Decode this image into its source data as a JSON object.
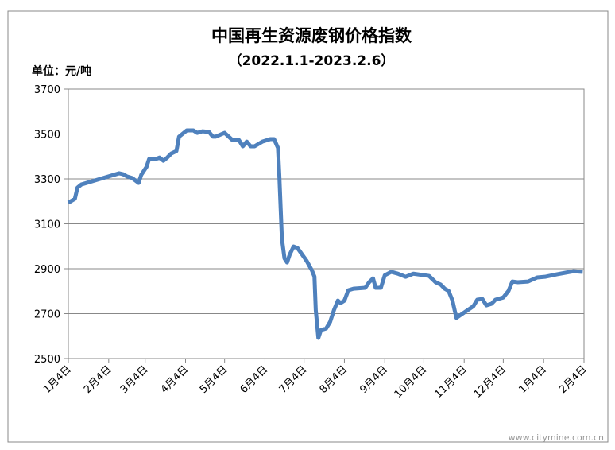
{
  "chart_data": {
    "type": "line",
    "title": "中国再生资源废钢价格指数",
    "subtitle": "（2022.1.1-2023.2.6）",
    "y_unit_label": "单位：元/吨",
    "watermark": "www.citymine.com.cn",
    "x": [
      0,
      5,
      7,
      10,
      39,
      42,
      45,
      49,
      54,
      56,
      60,
      62,
      67,
      70,
      73,
      76,
      79,
      83,
      85,
      91,
      96,
      99,
      103,
      108,
      111,
      113,
      120,
      126,
      131,
      134,
      137,
      140,
      143,
      149,
      155,
      158,
      161,
      162,
      164,
      166,
      168,
      170,
      173,
      176,
      183,
      187,
      189,
      190,
      192,
      194,
      198,
      201,
      204,
      207,
      209,
      212,
      215,
      219,
      228,
      231,
      234,
      236,
      240,
      243,
      248,
      253,
      259,
      265,
      277,
      282,
      286,
      289,
      292,
      295,
      298,
      304,
      311,
      314,
      318,
      321,
      325,
      328,
      334,
      338,
      341,
      345,
      353,
      360,
      366,
      375,
      388,
      395
    ],
    "series": [
      {
        "color": "#4f81bd",
        "values": [
          3194,
          3211,
          3261,
          3275,
          3325,
          3321,
          3311,
          3304,
          3282,
          3318,
          3353,
          3388,
          3388,
          3395,
          3381,
          3395,
          3413,
          3424,
          3488,
          3516,
          3516,
          3505,
          3512,
          3509,
          3488,
          3488,
          3505,
          3473,
          3473,
          3445,
          3466,
          3445,
          3445,
          3466,
          3477,
          3477,
          3438,
          3318,
          3034,
          2946,
          2928,
          2963,
          2999,
          2992,
          2935,
          2893,
          2865,
          2716,
          2592,
          2627,
          2634,
          2663,
          2716,
          2758,
          2747,
          2758,
          2804,
          2811,
          2815,
          2840,
          2857,
          2815,
          2815,
          2871,
          2886,
          2878,
          2864,
          2878,
          2868,
          2840,
          2829,
          2811,
          2801,
          2758,
          2681,
          2705,
          2733,
          2762,
          2765,
          2737,
          2744,
          2762,
          2772,
          2801,
          2843,
          2840,
          2843,
          2861,
          2864,
          2875,
          2889,
          2886
        ]
      }
    ],
    "xlim": [
      0,
      396
    ],
    "xticks": [
      {
        "value": 0,
        "label": "1月4日"
      },
      {
        "value": 31,
        "label": "2月4日"
      },
      {
        "value": 59,
        "label": "3月4日"
      },
      {
        "value": 90,
        "label": "4月4日"
      },
      {
        "value": 120,
        "label": "5月4日"
      },
      {
        "value": 151,
        "label": "6月4日"
      },
      {
        "value": 181,
        "label": "7月4日"
      },
      {
        "value": 212,
        "label": "8月4日"
      },
      {
        "value": 243,
        "label": "9月4日"
      },
      {
        "value": 273,
        "label": "10月4日"
      },
      {
        "value": 304,
        "label": "11月4日"
      },
      {
        "value": 334,
        "label": "12月4日"
      },
      {
        "value": 365,
        "label": "1月4日"
      },
      {
        "value": 396,
        "label": "2月4日"
      }
    ],
    "ylim": [
      2500,
      3700
    ],
    "yticks": [
      2500,
      2700,
      2900,
      3100,
      3300,
      3500,
      3700
    ],
    "grid": true
  }
}
